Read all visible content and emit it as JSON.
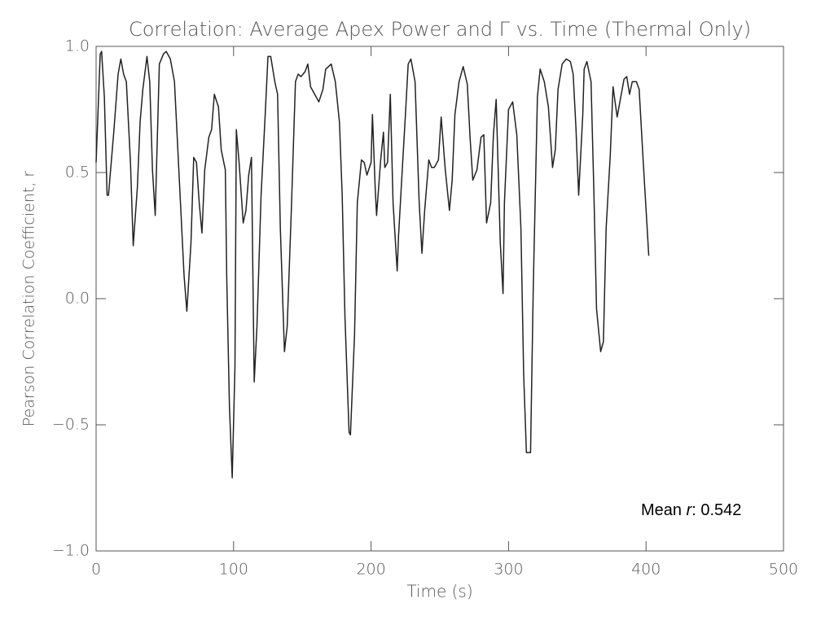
{
  "chart_data": {
    "type": "line",
    "title": "Correlation: Average Apex Power and Γ vs. Time (Thermal Only)",
    "x_label": "Time (s)",
    "y_label": "Pearson Correlation Coefficient, r",
    "annotation": [
      "Mean ",
      "r",
      ": 0.542"
    ],
    "xlim": [
      0,
      500
    ],
    "xticks": [
      0,
      100,
      200,
      300,
      400,
      500
    ],
    "ylim": [
      -1,
      1
    ],
    "yticks": [
      {
        "value": -1,
        "label": "−1.0"
      },
      {
        "value": -0.5,
        "label": "−0.5"
      },
      {
        "value": 0,
        "label": "0.0"
      },
      {
        "value": 0.5,
        "label": "0.5"
      },
      {
        "value": 1,
        "label": "1.0"
      }
    ],
    "series": [
      {
        "color": "#222222",
        "x": [
          0,
          3,
          4,
          6,
          8,
          9,
          13,
          16,
          18,
          20,
          22,
          25,
          27,
          30,
          32,
          34,
          37,
          39,
          41,
          43,
          46,
          49,
          51,
          54,
          57,
          59,
          62,
          64,
          66,
          69,
          71,
          73,
          75,
          77,
          79,
          82,
          84,
          86,
          89,
          91,
          94,
          95,
          97,
          99,
          101,
          102,
          104,
          107,
          109,
          111,
          113,
          115,
          117,
          120,
          123,
          125,
          127,
          130,
          132,
          134,
          137,
          139,
          142,
          145,
          147,
          149,
          152,
          154,
          156,
          159,
          162,
          165,
          167,
          171,
          174,
          177,
          179,
          181,
          184,
          185,
          188,
          190,
          193,
          195,
          197,
          200,
          201,
          203,
          204,
          207,
          209,
          210,
          212,
          214,
          216,
          219,
          220,
          223,
          225,
          227,
          229,
          232,
          235,
          237,
          239,
          242,
          244,
          246,
          249,
          251,
          254,
          257,
          259,
          261,
          264,
          267,
          270,
          272,
          274,
          277,
          280,
          282,
          284,
          287,
          289,
          291,
          294,
          296,
          297,
          300,
          303,
          306,
          309,
          311,
          313,
          316,
          318,
          321,
          323,
          326,
          329,
          332,
          334,
          336,
          339,
          342,
          345,
          347,
          349,
          351,
          354,
          355,
          357,
          360,
          362,
          364,
          367,
          369,
          371,
          374,
          376,
          379,
          381,
          384,
          386,
          388,
          390,
          393,
          395,
          398,
          402
        ],
        "values": [
          0.54,
          0.97,
          0.98,
          0.8,
          0.41,
          0.41,
          0.67,
          0.89,
          0.95,
          0.89,
          0.86,
          0.54,
          0.21,
          0.44,
          0.7,
          0.83,
          0.96,
          0.86,
          0.51,
          0.33,
          0.93,
          0.97,
          0.98,
          0.95,
          0.86,
          0.64,
          0.31,
          0.09,
          -0.05,
          0.22,
          0.56,
          0.54,
          0.38,
          0.26,
          0.51,
          0.64,
          0.67,
          0.81,
          0.76,
          0.59,
          0.51,
          0.09,
          -0.43,
          -0.71,
          -0.27,
          0.67,
          0.54,
          0.3,
          0.35,
          0.49,
          0.56,
          -0.33,
          -0.11,
          0.41,
          0.73,
          0.96,
          0.96,
          0.86,
          0.81,
          0.28,
          -0.21,
          -0.11,
          0.35,
          0.86,
          0.89,
          0.88,
          0.9,
          0.93,
          0.84,
          0.81,
          0.78,
          0.83,
          0.91,
          0.93,
          0.86,
          0.7,
          0.41,
          -0.07,
          -0.53,
          -0.54,
          -0.14,
          0.38,
          0.55,
          0.54,
          0.49,
          0.54,
          0.73,
          0.44,
          0.33,
          0.55,
          0.66,
          0.52,
          0.54,
          0.81,
          0.38,
          0.11,
          0.25,
          0.54,
          0.73,
          0.93,
          0.95,
          0.86,
          0.38,
          0.18,
          0.35,
          0.55,
          0.52,
          0.52,
          0.55,
          0.72,
          0.51,
          0.35,
          0.47,
          0.73,
          0.86,
          0.92,
          0.85,
          0.64,
          0.47,
          0.51,
          0.64,
          0.65,
          0.3,
          0.38,
          0.65,
          0.79,
          0.22,
          0.02,
          0.38,
          0.75,
          0.78,
          0.65,
          0.28,
          -0.3,
          -0.61,
          -0.61,
          0.05,
          0.8,
          0.91,
          0.86,
          0.76,
          0.52,
          0.59,
          0.83,
          0.93,
          0.95,
          0.94,
          0.89,
          0.68,
          0.41,
          0.73,
          0.91,
          0.94,
          0.86,
          0.44,
          -0.04,
          -0.21,
          -0.17,
          0.28,
          0.57,
          0.84,
          0.72,
          0.78,
          0.87,
          0.88,
          0.81,
          0.86,
          0.86,
          0.83,
          0.54,
          0.17
        ]
      }
    ]
  }
}
